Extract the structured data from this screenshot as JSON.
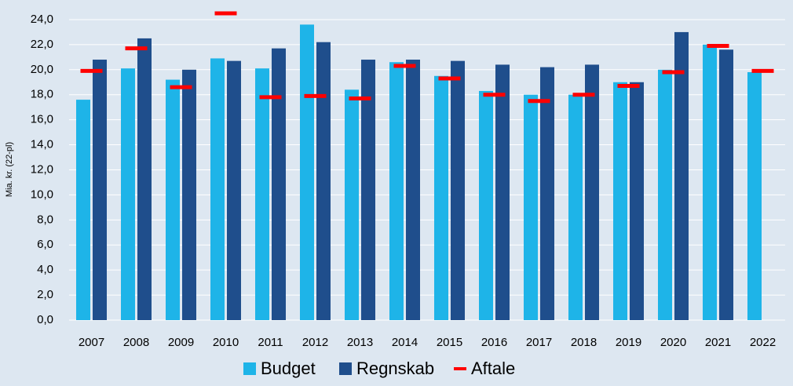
{
  "chart_data": {
    "type": "bar",
    "y_label": "Mia. kr. (22-pl)",
    "categories": [
      "2007",
      "2008",
      "2009",
      "2010",
      "2011",
      "2012",
      "2013",
      "2014",
      "2015",
      "2016",
      "2017",
      "2018",
      "2019",
      "2020",
      "2021",
      "2022"
    ],
    "series": [
      {
        "name": "Budget",
        "color": "#1eb4e8",
        "values": [
          17.6,
          20.1,
          19.2,
          20.9,
          20.1,
          23.6,
          18.4,
          20.6,
          19.5,
          18.3,
          18.0,
          18.0,
          19.0,
          20.0,
          22.0,
          19.8
        ]
      },
      {
        "name": "Regnskab",
        "color": "#1f4e8c",
        "values": [
          20.8,
          22.5,
          20.0,
          20.7,
          21.7,
          22.2,
          20.8,
          20.8,
          20.7,
          20.4,
          20.2,
          20.4,
          19.0,
          23.0,
          21.6,
          null
        ]
      },
      {
        "name": "Aftale",
        "color": "#ff0000",
        "mark": "dash",
        "values": [
          19.9,
          21.7,
          18.6,
          24.5,
          17.8,
          17.9,
          17.7,
          20.3,
          19.3,
          18.0,
          17.5,
          18.0,
          18.7,
          19.8,
          21.9,
          19.9
        ]
      }
    ],
    "ylim": [
      0,
      25
    ],
    "yticks": [
      {
        "value": 0,
        "label": "0,0"
      },
      {
        "value": 2,
        "label": "2,0"
      },
      {
        "value": 4,
        "label": "4,0"
      },
      {
        "value": 6,
        "label": "6,0"
      },
      {
        "value": 8,
        "label": "8,0"
      },
      {
        "value": 10,
        "label": "10,0"
      },
      {
        "value": 12,
        "label": "12,0"
      },
      {
        "value": 14,
        "label": "14,0"
      },
      {
        "value": 16,
        "label": "16,0"
      },
      {
        "value": 18,
        "label": "18,0"
      },
      {
        "value": 20,
        "label": "20,0"
      },
      {
        "value": 22,
        "label": "22,0"
      },
      {
        "value": 24,
        "label": "24,0"
      }
    ],
    "grid": true,
    "legend": "bottom"
  }
}
